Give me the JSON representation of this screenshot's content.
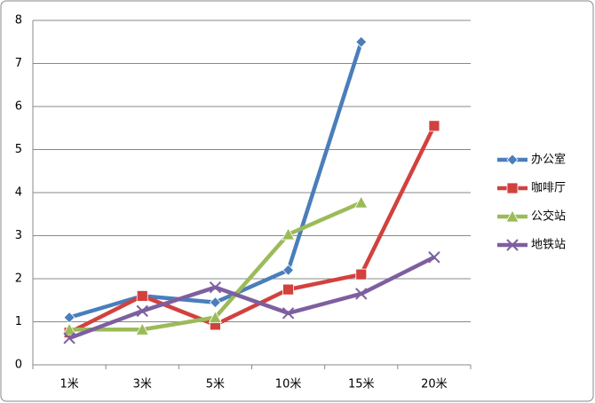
{
  "chart_data": {
    "type": "line",
    "categories": [
      "1米",
      "3米",
      "5米",
      "10米",
      "15米",
      "20米"
    ],
    "series": [
      {
        "name": "办公室",
        "color": "#4a7ebb",
        "marker": "diamond",
        "values": [
          1.1,
          1.6,
          1.45,
          2.2,
          7.5,
          null
        ]
      },
      {
        "name": "咖啡厅",
        "color": "#d2413e",
        "marker": "square",
        "values": [
          0.75,
          1.6,
          0.93,
          1.75,
          2.1,
          5.55
        ]
      },
      {
        "name": "公交站",
        "color": "#9bbb59",
        "marker": "triangle",
        "values": [
          0.82,
          0.82,
          1.1,
          3.03,
          3.77,
          null
        ]
      },
      {
        "name": "地铁站",
        "color": "#7d5fa0",
        "marker": "x",
        "values": [
          0.62,
          1.25,
          1.8,
          1.2,
          1.65,
          2.5
        ]
      }
    ],
    "ylim": [
      0,
      8
    ],
    "yticks": [
      0,
      1,
      2,
      3,
      4,
      5,
      6,
      7,
      8
    ],
    "grid": true,
    "legend": "right"
  }
}
